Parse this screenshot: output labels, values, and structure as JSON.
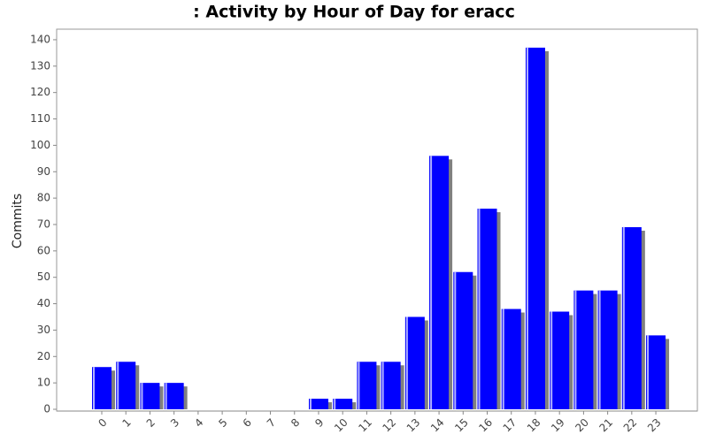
{
  "chart_data": {
    "type": "bar",
    "title": ": Activity by Hour of Day for eracc",
    "ylabel": "Commits",
    "categories": [
      "0",
      "1",
      "2",
      "3",
      "4",
      "5",
      "6",
      "7",
      "8",
      "9",
      "10",
      "11",
      "12",
      "13",
      "14",
      "15",
      "16",
      "17",
      "18",
      "19",
      "20",
      "21",
      "22",
      "23"
    ],
    "values": [
      16,
      18,
      10,
      10,
      0,
      0,
      0,
      0,
      0,
      4,
      4,
      18,
      18,
      35,
      96,
      52,
      76,
      38,
      137,
      37,
      45,
      45,
      69,
      28
    ],
    "color": "#0000ff",
    "shadow_color": "#808080",
    "ylim": [
      0,
      144
    ],
    "yticks": [
      0,
      10,
      20,
      30,
      40,
      50,
      60,
      70,
      80,
      90,
      100,
      110,
      120,
      130,
      140
    ],
    "grid": false
  }
}
